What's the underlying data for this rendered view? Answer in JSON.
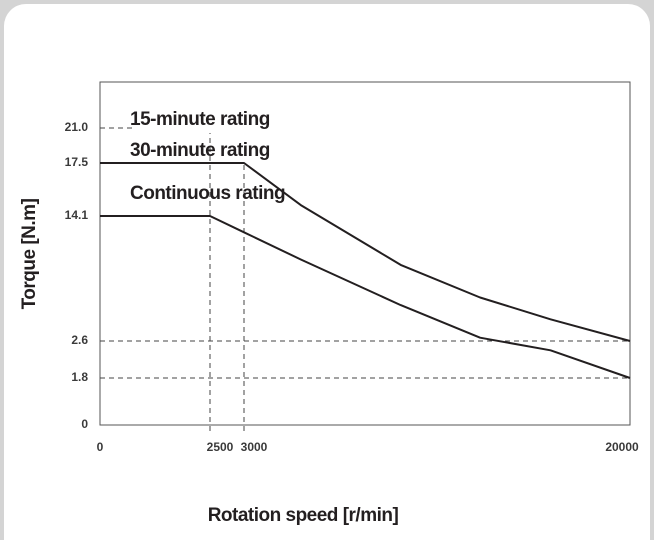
{
  "chart_data": {
    "type": "line",
    "x_label": "Rotation speed [r/min]",
    "y_label": "Torque [N.m]",
    "x": [
      0,
      2500,
      3000,
      5500,
      9900,
      13400,
      16500,
      20000
    ],
    "series": [
      {
        "name": "30-minute rating",
        "color": "#231f20",
        "values": [
          17.5,
          17.5,
          17.5,
          14.8,
          9.6,
          6.6,
          4.6,
          2.6
        ]
      },
      {
        "name": "Continuous rating",
        "color": "#231f20",
        "values": [
          14.1,
          14.1,
          12.6,
          10.1,
          5.9,
          2.9,
          2.4,
          1.8
        ]
      }
    ],
    "annotations": [
      "15-minute rating"
    ],
    "xlim": [
      0,
      20000
    ],
    "xticks": [
      0,
      2500,
      3000,
      20000
    ],
    "ylim": [
      0,
      21
    ],
    "yticks": [
      0,
      1.8,
      2.6,
      14.1,
      17.5,
      {
        "value": 21,
        "label": "21.0"
      }
    ]
  }
}
